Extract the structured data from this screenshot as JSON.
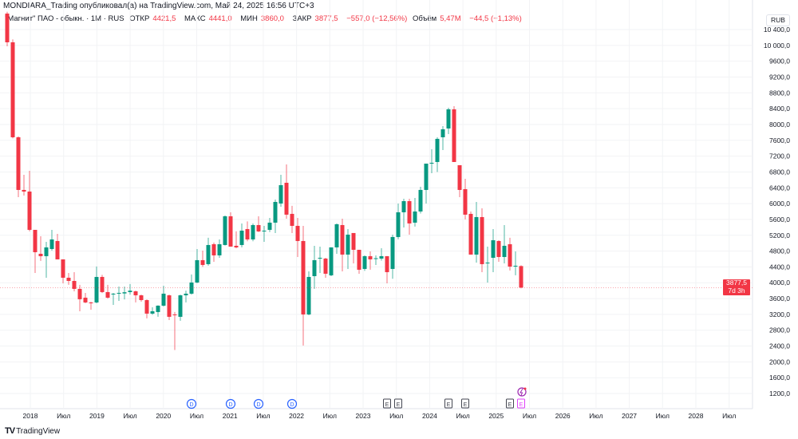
{
  "header": {
    "published": "MONDIARA_Trading опубликовал(а) на TradingView.com, Май 24, 2025 16:56 UTC+3"
  },
  "legend": {
    "symbol": "\"Магнит\" ПАО - обыкн. · 1M · RUS",
    "open_label": "ОТКР",
    "open": "4421,5",
    "high_label": "МАКС",
    "high": "4441,0",
    "low_label": "МИН",
    "low": "3860,0",
    "close_label": "ЗАКР",
    "close": "3877,5",
    "change": "−557,0 (−12,56%)",
    "volume_label": "Объём",
    "volume": "5,47M",
    "volume_change": "−44,5 (−1,13%)"
  },
  "currency": "RUB",
  "current_price": {
    "value": 3877.5,
    "label": "3877,5",
    "countdown": "7d 3h"
  },
  "price_axis": [
    "10 400,0",
    "10 000,0",
    "9600,0",
    "9200,0",
    "8800,0",
    "8400,0",
    "8000,0",
    "7600,0",
    "7200,0",
    "6800,0",
    "6400,0",
    "6000,0",
    "5600,0",
    "5200,0",
    "4800,0",
    "4400,0",
    "4000,0",
    "3600,0",
    "3200,0",
    "2800,0",
    "2400,0",
    "2000,0",
    "1600,0",
    "1200,0"
  ],
  "time_axis": [
    "2018",
    "Июл",
    "2019",
    "Июл",
    "2020",
    "Июл",
    "2021",
    "Июл",
    "2022",
    "Июл",
    "2023",
    "Июл",
    "2024",
    "Июл",
    "2025",
    "Июл",
    "2026",
    "Июл",
    "2027",
    "Июл",
    "2028",
    "Июл"
  ],
  "events": [
    {
      "type": "D",
      "month_index": 33
    },
    {
      "type": "D",
      "month_index": 40
    },
    {
      "type": "D",
      "month_index": 45
    },
    {
      "type": "D",
      "month_index": 51
    },
    {
      "type": "E",
      "month_index": 69
    },
    {
      "type": "E",
      "month_index": 71
    },
    {
      "type": "E",
      "month_index": 80
    },
    {
      "type": "E",
      "month_index": 83
    },
    {
      "type": "E",
      "month_index": 91
    },
    {
      "type": "E-upcoming",
      "month_index": 92
    },
    {
      "type": "split",
      "month_index": 92
    }
  ],
  "colors": {
    "up": "#089981",
    "down": "#f23645",
    "upcoming": "#e040fb",
    "dividend": "#2962ff"
  },
  "footer": {
    "brand": "TradingView"
  },
  "chart_data": {
    "type": "candlestick",
    "interval": "1M",
    "ylim": [
      1000,
      10900
    ],
    "candles": [
      [
        10803,
        10850,
        9976,
        10077
      ],
      [
        10077,
        10150,
        7650,
        7677
      ],
      [
        7677,
        7700,
        6164,
        6346
      ],
      [
        6346,
        6729,
        6205,
        6305
      ],
      [
        6305,
        6830,
        5300,
        5337
      ],
      [
        5337,
        5337,
        4248,
        4772
      ],
      [
        4732,
        5176,
        4551,
        4672
      ],
      [
        4672,
        5035,
        4127,
        4894
      ],
      [
        4853,
        5337,
        4813,
        5095
      ],
      [
        5055,
        5236,
        4591,
        4591
      ],
      [
        4591,
        4591,
        3986,
        4127
      ],
      [
        4127,
        4248,
        3946,
        4046
      ],
      [
        4046,
        4268,
        3784,
        3845
      ],
      [
        3845,
        3946,
        3280,
        3583
      ],
      [
        3623,
        3744,
        3482,
        3502
      ],
      [
        3502,
        3522,
        3320,
        3490
      ],
      [
        3502,
        4410,
        3480,
        4147
      ],
      [
        4147,
        4200,
        3740,
        3764
      ],
      [
        3764,
        3946,
        3600,
        3623
      ],
      [
        3704,
        3744,
        3441,
        3724
      ],
      [
        3724,
        3905,
        3542,
        3744
      ],
      [
        3730,
        3905,
        3580,
        3760
      ],
      [
        3764,
        3966,
        3700,
        3800
      ],
      [
        3784,
        3800,
        3502,
        3683
      ],
      [
        3683,
        3700,
        3520,
        3562
      ],
      [
        3562,
        3580,
        3099,
        3220
      ],
      [
        3220,
        3380,
        3190,
        3280
      ],
      [
        3260,
        3430,
        3139,
        3421
      ],
      [
        3421,
        3925,
        3400,
        3724
      ],
      [
        3683,
        3700,
        3058,
        3139
      ],
      [
        3199,
        3260,
        2300,
        3190
      ],
      [
        3139,
        3700,
        3038,
        3683
      ],
      [
        3683,
        3800,
        3502,
        3724
      ],
      [
        3724,
        4208,
        3700,
        4006
      ],
      [
        4006,
        4853,
        3990,
        4571
      ],
      [
        4571,
        4813,
        4400,
        4450
      ],
      [
        4470,
        5136,
        4430,
        4954
      ],
      [
        4974,
        5015,
        4530,
        4692
      ],
      [
        4692,
        5095,
        4630,
        4974
      ],
      [
        4954,
        5700,
        4940,
        5680
      ],
      [
        5680,
        5781,
        4914,
        4914
      ],
      [
        4934,
        5300,
        4870,
        4894
      ],
      [
        4954,
        5499,
        4894,
        5317
      ],
      [
        5357,
        5550,
        5050,
        5095
      ],
      [
        5095,
        5499,
        5050,
        5458
      ],
      [
        5458,
        5680,
        5280,
        5297
      ],
      [
        5297,
        5438,
        5035,
        5317
      ],
      [
        5337,
        5640,
        5280,
        5519
      ],
      [
        5519,
        6104,
        5257,
        6043
      ],
      [
        6003,
        6729,
        5922,
        6467
      ],
      [
        6527,
        6991,
        5620,
        5721
      ],
      [
        5741,
        5943,
        5257,
        5438
      ],
      [
        5438,
        5640,
        4651,
        5055
      ],
      [
        5055,
        5438,
        2413,
        3199
      ],
      [
        3199,
        4288,
        3179,
        4147
      ],
      [
        4167,
        4934,
        3845,
        4571
      ],
      [
        4611,
        4914,
        4248,
        4631
      ],
      [
        4611,
        4631,
        4127,
        4228
      ],
      [
        4188,
        4894,
        4167,
        4894
      ],
      [
        4894,
        5499,
        4732,
        5479
      ],
      [
        5458,
        5620,
        4288,
        4712
      ],
      [
        4712,
        5357,
        4349,
        5216
      ],
      [
        5257,
        5257,
        4490,
        4833
      ],
      [
        4833,
        4833,
        4228,
        4329
      ],
      [
        4349,
        4690,
        4300,
        4672
      ],
      [
        4672,
        4793,
        4330,
        4591
      ],
      [
        4611,
        4692,
        4450,
        4620
      ],
      [
        4611,
        4873,
        4560,
        4672
      ],
      [
        4672,
        4672,
        3986,
        4268
      ],
      [
        4349,
        5216,
        4100,
        5156
      ],
      [
        5156,
        6003,
        5100,
        5781
      ],
      [
        5781,
        6124,
        5398,
        6063
      ],
      [
        6063,
        6124,
        5216,
        5499
      ],
      [
        5519,
        6144,
        5420,
        5801
      ],
      [
        5801,
        6426,
        5750,
        6346
      ],
      [
        6346,
        7011,
        6003,
        7011
      ],
      [
        7011,
        7375,
        6769,
        7032
      ],
      [
        7052,
        7677,
        6800,
        7637
      ],
      [
        7677,
        7960,
        7354,
        7879
      ],
      [
        7899,
        8423,
        7758,
        8383
      ],
      [
        8383,
        8464,
        7052,
        7052
      ],
      [
        6971,
        6971,
        6164,
        6346
      ],
      [
        6366,
        6628,
        5600,
        5721
      ],
      [
        5741,
        5800,
        4712,
        4712
      ],
      [
        4712,
        6043,
        4510,
        5660
      ],
      [
        5660,
        5882,
        4268,
        4470
      ],
      [
        4490,
        4914,
        4006,
        4510
      ],
      [
        4631,
        5357,
        4268,
        5075
      ],
      [
        5055,
        5075,
        4530,
        4651
      ],
      [
        4651,
        5458,
        4490,
        4934
      ],
      [
        4974,
        5136,
        4309,
        4409
      ],
      [
        4430,
        4793,
        4188,
        4430
      ],
      [
        4421.5,
        4441,
        3860,
        3877.5
      ]
    ]
  }
}
